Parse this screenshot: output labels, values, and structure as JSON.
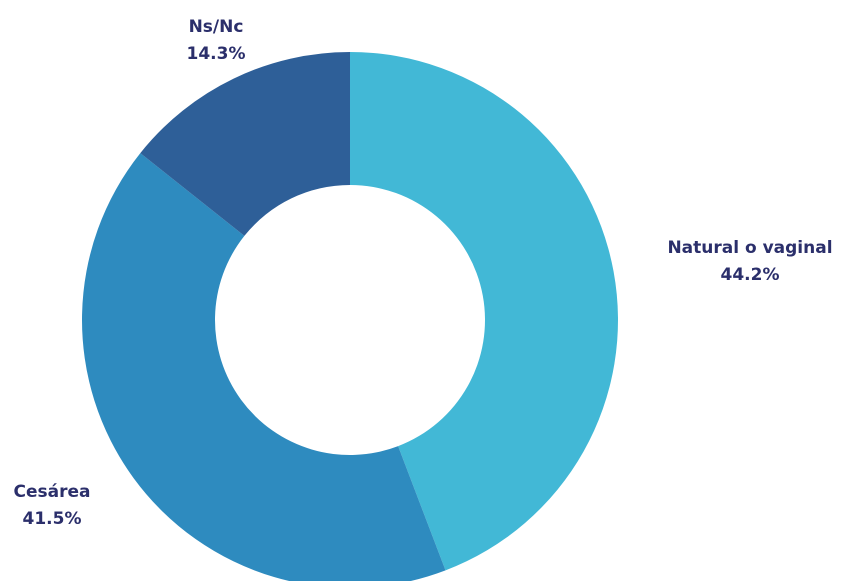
{
  "chart_data": {
    "type": "pie",
    "categories": [
      "Natural o vaginal",
      "Cesárea",
      "Ns/Nc"
    ],
    "values": [
      44.2,
      41.5,
      14.3
    ],
    "value_labels": [
      "44.2%",
      "41.5%",
      "14.3%"
    ],
    "colors": [
      "#42b8d6",
      "#2e8bbf",
      "#2e5f98"
    ]
  }
}
